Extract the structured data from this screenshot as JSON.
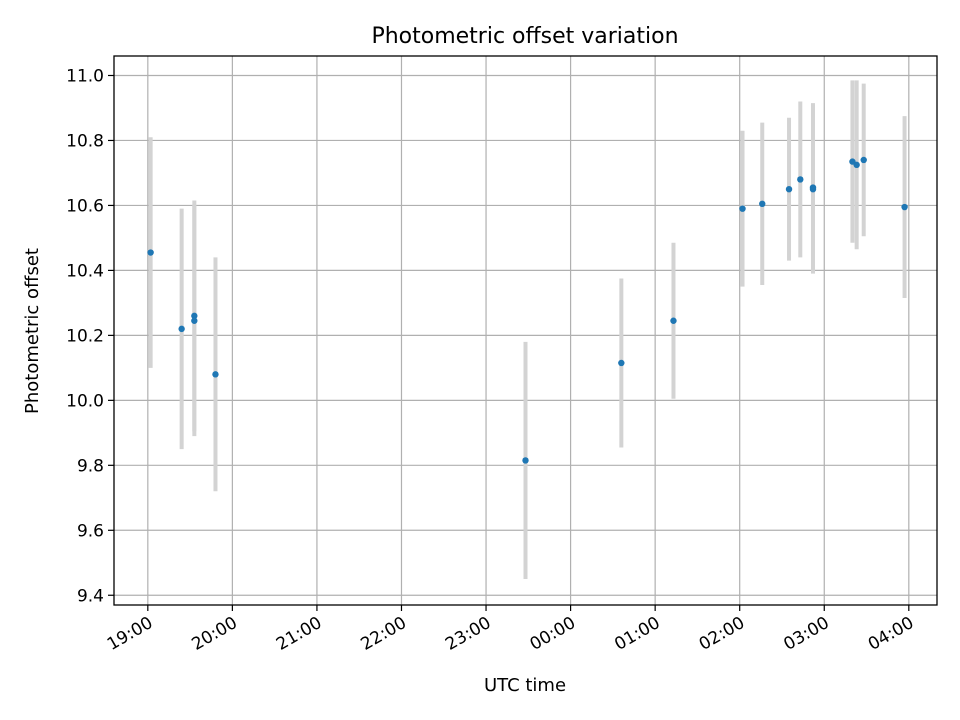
{
  "chart_data": {
    "type": "scatter",
    "title": "Photometric offset variation",
    "xlabel": "UTC time",
    "ylabel": "Photometric offset",
    "x_axis_type": "time",
    "x_range": [
      "18:36",
      "04:20"
    ],
    "xticks": [
      "19:00",
      "20:00",
      "21:00",
      "22:00",
      "23:00",
      "00:00",
      "01:00",
      "02:00",
      "03:00",
      "04:00"
    ],
    "ylim": [
      9.37,
      11.06
    ],
    "yticks": [
      9.4,
      9.6,
      9.8,
      10.0,
      10.2,
      10.4,
      10.6,
      10.8,
      11.0
    ],
    "grid": true,
    "error_bars": true,
    "colors": {
      "point": "#1f77b4",
      "errorbar": "#d3d3d3",
      "grid": "#b0b0b0"
    },
    "points": [
      {
        "x": "19:02",
        "y": 10.455,
        "err": 0.355
      },
      {
        "x": "19:24",
        "y": 10.22,
        "err": 0.37
      },
      {
        "x": "19:33",
        "y": 10.26,
        "err": 0.355
      },
      {
        "x": "19:33",
        "y": 10.245,
        "err": 0.355
      },
      {
        "x": "19:48",
        "y": 10.08,
        "err": 0.36
      },
      {
        "x": "23:28",
        "y": 9.815,
        "err": 0.365
      },
      {
        "x": "00:36",
        "y": 10.115,
        "err": 0.26
      },
      {
        "x": "01:13",
        "y": 10.245,
        "err": 0.24
      },
      {
        "x": "02:02",
        "y": 10.59,
        "err": 0.24
      },
      {
        "x": "02:16",
        "y": 10.605,
        "err": 0.25
      },
      {
        "x": "02:35",
        "y": 10.65,
        "err": 0.22
      },
      {
        "x": "02:43",
        "y": 10.68,
        "err": 0.24
      },
      {
        "x": "02:52",
        "y": 10.655,
        "err": 0.26
      },
      {
        "x": "02:52",
        "y": 10.65,
        "err": 0.26
      },
      {
        "x": "03:20",
        "y": 10.735,
        "err": 0.25
      },
      {
        "x": "03:23",
        "y": 10.725,
        "err": 0.26
      },
      {
        "x": "03:28",
        "y": 10.74,
        "err": 0.235
      },
      {
        "x": "03:57",
        "y": 10.595,
        "err": 0.28
      }
    ]
  }
}
